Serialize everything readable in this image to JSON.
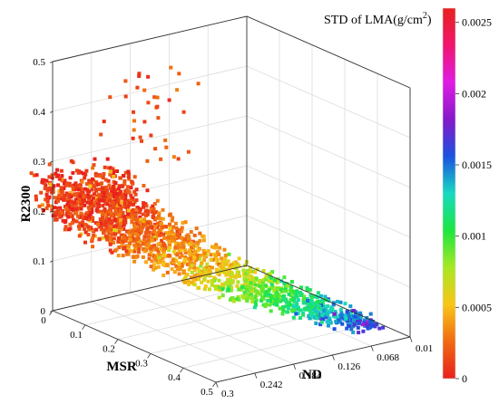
{
  "chart_data": {
    "type": "scatter",
    "subtype": "3d-scatter",
    "title": "",
    "x_axis": {
      "label": "MSR",
      "ticks": [
        "0",
        "0.1",
        "0.2",
        "0.3",
        "0.4",
        "0.5"
      ],
      "range": [
        0,
        0.5
      ]
    },
    "y_axis": {
      "label": "ND",
      "ticks": [
        "0.3",
        "0.242",
        "0.184",
        "0.126",
        "0.068",
        "0.01"
      ],
      "range": [
        0.3,
        0.01
      ]
    },
    "z_axis": {
      "label": "R2300",
      "ticks": [
        "0",
        "0.1",
        "0.2",
        "0.3",
        "0.4",
        "0.5"
      ],
      "range": [
        0,
        0.5
      ]
    },
    "colorbar": {
      "title": "STD of LMA(g/cm",
      "title_superscript": "2",
      "title_close": ")",
      "ticks": [
        "0.0025",
        "0.002",
        "0.0015",
        "0.001",
        "0.0005",
        "0"
      ],
      "range": [
        0,
        0.0026
      ],
      "colormap": [
        "#e8211c",
        "#f06a13",
        "#f9c517",
        "#a8e824",
        "#1de640",
        "#18d9c2",
        "#1b52e0",
        "#8518c9",
        "#e01ce3",
        "#f0166e",
        "#e8211c"
      ]
    },
    "grid": true,
    "point_cloud": [
      {
        "msr": 0.04,
        "nd": 0.29,
        "r2300": 0.27,
        "std": 5e-05
      },
      {
        "msr": 0.07,
        "nd": 0.28,
        "r2300": 0.24,
        "std": 0.0001
      },
      {
        "msr": 0.1,
        "nd": 0.27,
        "r2300": 0.22,
        "std": 0.0001
      },
      {
        "msr": 0.14,
        "nd": 0.25,
        "r2300": 0.19,
        "std": 0.0002
      },
      {
        "msr": 0.18,
        "nd": 0.23,
        "r2300": 0.17,
        "std": 0.0003
      },
      {
        "msr": 0.23,
        "nd": 0.21,
        "r2300": 0.14,
        "std": 0.0004
      },
      {
        "msr": 0.28,
        "nd": 0.18,
        "r2300": 0.11,
        "std": 0.0006
      },
      {
        "msr": 0.33,
        "nd": 0.15,
        "r2300": 0.09,
        "std": 0.0009
      },
      {
        "msr": 0.38,
        "nd": 0.12,
        "r2300": 0.07,
        "std": 0.0011
      },
      {
        "msr": 0.43,
        "nd": 0.09,
        "r2300": 0.05,
        "std": 0.0014
      },
      {
        "msr": 0.47,
        "nd": 0.06,
        "r2300": 0.03,
        "std": 0.0016
      }
    ]
  }
}
